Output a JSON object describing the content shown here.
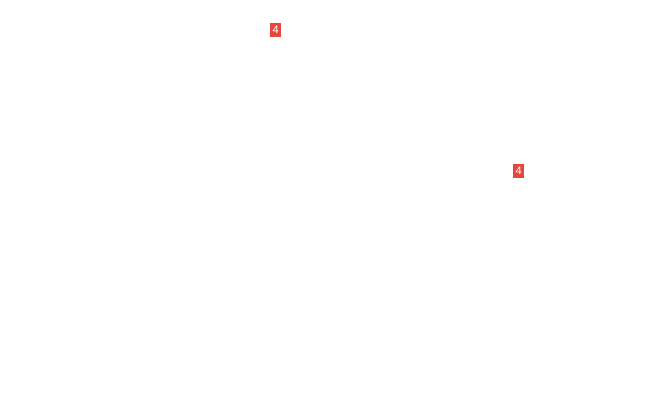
{
  "badges": [
    {
      "label": "4",
      "color": "#e8453c"
    },
    {
      "label": "4",
      "color": "#e8453c"
    }
  ]
}
